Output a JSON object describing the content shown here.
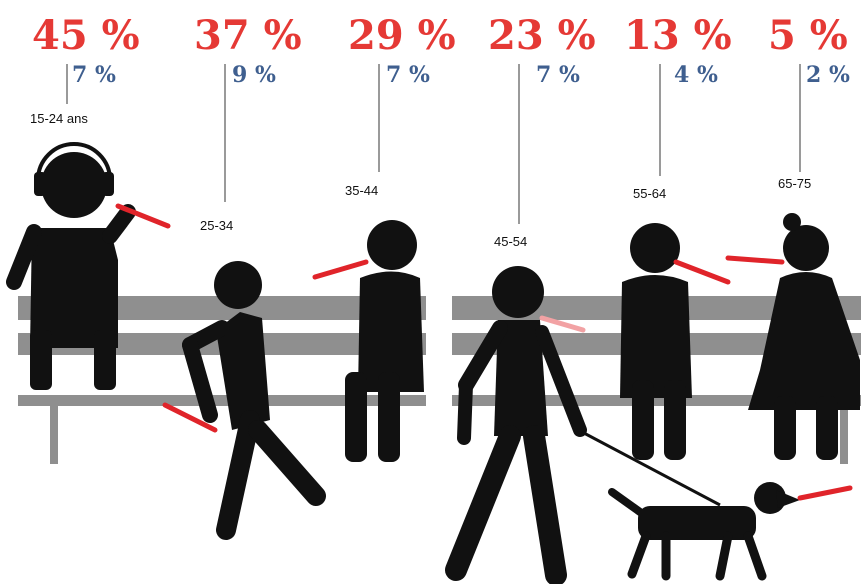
{
  "colors": {
    "smoker": "#e53935",
    "daily": "#3f5f8f",
    "figure": "#111111",
    "bench": "#8f8f8f",
    "cigarette": "#e0242a",
    "smoke": "#f2a2a4"
  },
  "groups": [
    {
      "age": "15-24 ans",
      "smokers": "45 %",
      "daily": "7 %"
    },
    {
      "age": "25-34",
      "smokers": "37 %",
      "daily": "9 %"
    },
    {
      "age": "35-44",
      "smokers": "29 %",
      "daily": "7 %"
    },
    {
      "age": "45-54",
      "smokers": "23 %",
      "daily": "7 %"
    },
    {
      "age": "55-64",
      "smokers": "13 %",
      "daily": "4 %"
    },
    {
      "age": "65-75",
      "smokers": "5 %",
      "daily": "2 %"
    }
  ],
  "icons": [
    "person-headphones-icon",
    "person-walking-icon",
    "person-seated-icon",
    "person-with-dog-icon",
    "person-seated-icon",
    "person-woman-icon",
    "dog-icon",
    "bench-icon",
    "cigarette-icon"
  ]
}
